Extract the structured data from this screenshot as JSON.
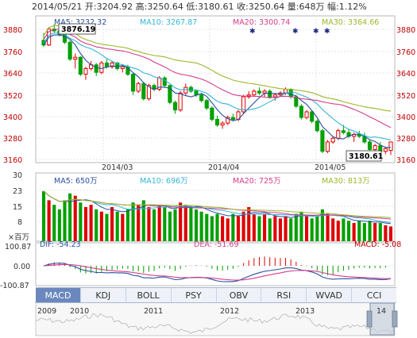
{
  "header": {
    "date": "2014/05/21",
    "open_label": "开:",
    "open": "3204.92",
    "high_label": "高:",
    "high": "3250.64",
    "low_label": "低:",
    "low": "3180.61",
    "close_label": "收:",
    "close": "3250.64",
    "volume_label": "量:",
    "volume": "648万",
    "change_label": "幅:",
    "change": "1.12%"
  },
  "ma": {
    "ma5": "MA5: 3232.32",
    "ma10": "MA10: 3267.87",
    "ma20": "MA20: 3300.74",
    "ma30": "MA30: 3364.66"
  },
  "price_axis": [
    "3880",
    "3760",
    "3640",
    "3520",
    "3400",
    "3280",
    "3160"
  ],
  "time_axis": [
    "2014/03",
    "2014/04",
    "2014/05"
  ],
  "callouts": {
    "high": "3876.19",
    "low": "3180.61"
  },
  "volume_ma": {
    "ma5": "MA5: 650万",
    "ma10": "MA10: 696万",
    "ma20": "MA20: 725万",
    "ma30": "MA30: 813万"
  },
  "volume_axis": [
    "30",
    "23",
    "15",
    "8"
  ],
  "volume_unit": "×百万",
  "macd": {
    "dif": "DIF: -54.23",
    "dea": "DEA: -51.69",
    "macd": "MACD: -5.08"
  },
  "macd_axis": [
    "100.87",
    "0.00",
    "-100.87"
  ],
  "tabs": [
    "MACD",
    "KDJ",
    "BOLL",
    "PSY",
    "OBV",
    "RSI",
    "WVAD",
    "CCI"
  ],
  "active_tab": "MACD",
  "timeline_years": [
    "2009",
    "2010",
    "2011",
    "2012",
    "2013",
    "14"
  ],
  "colors": {
    "up": "#e00000",
    "down": "#00a000",
    "ma5": "#2a4fa0",
    "ma10": "#33b5d6",
    "ma20": "#d43d8a",
    "ma30": "#9ab82a",
    "tab_active": "#6a88bd",
    "grid": "#dcdcdc"
  },
  "chart_data": {
    "type": "candlestick",
    "x": [
      "2014/02/13",
      "2014/02/14",
      "2014/02/17",
      "2014/02/18",
      "2014/02/19",
      "2014/02/20",
      "2014/02/21",
      "2014/02/24",
      "2014/02/25",
      "2014/02/26",
      "2014/02/27",
      "2014/02/28",
      "2014/03/03",
      "2014/03/04",
      "2014/03/05",
      "2014/03/06",
      "2014/03/07",
      "2014/03/10",
      "2014/03/11",
      "2014/03/12",
      "2014/03/13",
      "2014/03/14",
      "2014/03/17",
      "2014/03/18",
      "2014/03/19",
      "2014/03/20",
      "2014/03/21",
      "2014/03/24",
      "2014/03/25",
      "2014/03/26",
      "2014/03/27",
      "2014/03/28",
      "2014/03/31",
      "2014/04/01",
      "2014/04/02",
      "2014/04/03",
      "2014/04/04",
      "2014/04/08",
      "2014/04/09",
      "2014/04/10",
      "2014/04/11",
      "2014/04/14",
      "2014/04/15",
      "2014/04/16",
      "2014/04/17",
      "2014/04/18",
      "2014/04/21",
      "2014/04/22",
      "2014/04/23",
      "2014/04/24",
      "2014/04/25",
      "2014/04/28",
      "2014/04/29",
      "2014/04/30",
      "2014/05/05",
      "2014/05/06",
      "2014/05/07",
      "2014/05/08",
      "2014/05/09",
      "2014/05/12",
      "2014/05/13",
      "2014/05/14",
      "2014/05/15",
      "2014/05/16",
      "2014/05/19",
      "2014/05/20",
      "2014/05/21"
    ],
    "ohlc": [
      [
        3790,
        3830,
        3755,
        3765
      ],
      [
        3765,
        3860,
        3760,
        3850
      ],
      [
        3850,
        3876,
        3830,
        3840
      ],
      [
        3840,
        3845,
        3810,
        3820
      ],
      [
        3820,
        3830,
        3770,
        3780
      ],
      [
        3780,
        3790,
        3680,
        3690
      ],
      [
        3690,
        3720,
        3640,
        3700
      ],
      [
        3700,
        3705,
        3600,
        3610
      ],
      [
        3610,
        3650,
        3580,
        3640
      ],
      [
        3640,
        3680,
        3630,
        3660
      ],
      [
        3660,
        3670,
        3600,
        3620
      ],
      [
        3620,
        3680,
        3610,
        3670
      ],
      [
        3670,
        3690,
        3640,
        3650
      ],
      [
        3650,
        3680,
        3640,
        3670
      ],
      [
        3670,
        3675,
        3630,
        3640
      ],
      [
        3640,
        3660,
        3620,
        3650
      ],
      [
        3650,
        3660,
        3600,
        3610
      ],
      [
        3610,
        3615,
        3500,
        3520
      ],
      [
        3520,
        3570,
        3510,
        3560
      ],
      [
        3560,
        3570,
        3470,
        3480
      ],
      [
        3480,
        3560,
        3470,
        3550
      ],
      [
        3550,
        3560,
        3520,
        3530
      ],
      [
        3530,
        3600,
        3520,
        3590
      ],
      [
        3590,
        3600,
        3540,
        3550
      ],
      [
        3550,
        3555,
        3450,
        3460
      ],
      [
        3460,
        3470,
        3400,
        3420
      ],
      [
        3420,
        3520,
        3410,
        3510
      ],
      [
        3510,
        3560,
        3500,
        3540
      ],
      [
        3540,
        3550,
        3510,
        3520
      ],
      [
        3520,
        3530,
        3490,
        3500
      ],
      [
        3500,
        3510,
        3460,
        3470
      ],
      [
        3470,
        3480,
        3420,
        3430
      ],
      [
        3430,
        3440,
        3360,
        3370
      ],
      [
        3370,
        3390,
        3330,
        3340
      ],
      [
        3340,
        3360,
        3320,
        3350
      ],
      [
        3350,
        3390,
        3340,
        3380
      ],
      [
        3380,
        3400,
        3360,
        3370
      ],
      [
        3370,
        3420,
        3360,
        3410
      ],
      [
        3410,
        3500,
        3400,
        3490
      ],
      [
        3490,
        3520,
        3480,
        3500
      ],
      [
        3500,
        3530,
        3490,
        3520
      ],
      [
        3520,
        3540,
        3500,
        3510
      ],
      [
        3510,
        3530,
        3490,
        3520
      ],
      [
        3520,
        3530,
        3480,
        3490
      ],
      [
        3490,
        3510,
        3470,
        3500
      ],
      [
        3500,
        3520,
        3490,
        3510
      ],
      [
        3510,
        3540,
        3500,
        3530
      ],
      [
        3530,
        3535,
        3480,
        3490
      ],
      [
        3490,
        3500,
        3430,
        3440
      ],
      [
        3440,
        3450,
        3370,
        3380
      ],
      [
        3380,
        3420,
        3370,
        3410
      ],
      [
        3410,
        3420,
        3350,
        3360
      ],
      [
        3360,
        3370,
        3300,
        3310
      ],
      [
        3310,
        3320,
        3190,
        3200
      ],
      [
        3200,
        3260,
        3190,
        3250
      ],
      [
        3250,
        3280,
        3240,
        3270
      ],
      [
        3270,
        3320,
        3260,
        3310
      ],
      [
        3310,
        3340,
        3290,
        3300
      ],
      [
        3300,
        3320,
        3270,
        3280
      ],
      [
        3280,
        3300,
        3250,
        3290
      ],
      [
        3290,
        3310,
        3270,
        3280
      ],
      [
        3280,
        3300,
        3240,
        3250
      ],
      [
        3250,
        3260,
        3200,
        3210
      ],
      [
        3210,
        3240,
        3200,
        3230
      ],
      [
        3230,
        3250,
        3190,
        3200
      ],
      [
        3200,
        3225,
        3185,
        3215
      ],
      [
        3205,
        3251,
        3181,
        3250
      ]
    ],
    "volume": [
      22,
      18,
      16,
      14,
      18,
      21,
      20,
      17,
      15,
      16,
      14,
      13,
      12,
      15,
      13,
      12,
      14,
      17,
      16,
      18,
      15,
      14,
      16,
      15,
      13,
      14,
      17,
      16,
      15,
      14,
      13,
      12,
      11,
      12,
      11,
      10,
      12,
      11,
      13,
      15,
      12,
      11,
      12,
      10,
      11,
      10,
      11,
      10,
      12,
      13,
      11,
      10,
      11,
      14,
      12,
      10,
      9,
      10,
      9,
      8,
      9,
      8,
      9,
      8,
      8,
      7,
      6.5
    ],
    "ylim": [
      3140,
      3920
    ],
    "volume_ylim": [
      0,
      30
    ]
  }
}
